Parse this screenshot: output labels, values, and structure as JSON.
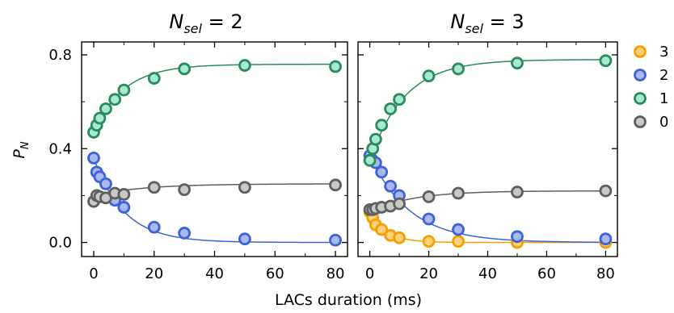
{
  "chart_data": [
    {
      "type": "scatter",
      "title": "N_sel = 2",
      "title_main": "N",
      "title_sub": "sel",
      "title_rest": " = 2",
      "xlabel": "LACs duration (ms)",
      "ylabel": "P_N",
      "ylabel_main": "P",
      "ylabel_sub": "N",
      "xlim": [
        -4,
        84
      ],
      "ylim": [
        -0.06,
        0.855
      ],
      "xticks": [
        0,
        20,
        40,
        60,
        80
      ],
      "xtick_labels": [
        "0",
        "20",
        "40",
        "60",
        "80"
      ],
      "yticks": [
        0.0,
        0.4,
        0.8
      ],
      "ytick_labels": [
        "0.0",
        "0.4",
        "0.8"
      ],
      "grid": false,
      "series": [
        {
          "name": "2",
          "fill": "#a9b9f0",
          "stroke": "#3d63d6",
          "x": [
            0,
            1,
            2,
            4,
            7,
            10,
            20,
            30,
            50,
            80
          ],
          "y": [
            0.36,
            0.3,
            0.28,
            0.25,
            0.18,
            0.15,
            0.065,
            0.04,
            0.015,
            0.01
          ],
          "fit": [
            0.36,
            0.355,
            0.0,
            0.1
          ]
        },
        {
          "name": "1",
          "fill": "#a7e9d2",
          "stroke": "#2b8b5c",
          "x": [
            0,
            1,
            2,
            4,
            7,
            10,
            20,
            30,
            50,
            80
          ],
          "y": [
            0.47,
            0.5,
            0.53,
            0.57,
            0.61,
            0.65,
            0.7,
            0.74,
            0.755,
            0.75
          ],
          "fit": [
            0.47,
            -0.29,
            0.76,
            0.1
          ]
        },
        {
          "name": "0",
          "fill": "#c9c9c9",
          "stroke": "#5f5f5f",
          "x": [
            0,
            1,
            2,
            4,
            7,
            10,
            20,
            30,
            50,
            80
          ],
          "y": [
            0.175,
            0.2,
            0.195,
            0.19,
            0.21,
            0.205,
            0.235,
            0.225,
            0.235,
            0.245
          ],
          "fit": [
            0.2,
            -0.05,
            0.25,
            0.06
          ]
        }
      ]
    },
    {
      "type": "scatter",
      "title": "N_sel = 3",
      "title_main": "N",
      "title_sub": "sel",
      "title_rest": " = 3",
      "xlabel": "LACs duration (ms)",
      "xlim": [
        -4,
        84
      ],
      "ylim": [
        -0.06,
        0.855
      ],
      "xticks": [
        0,
        20,
        40,
        60,
        80
      ],
      "xtick_labels": [
        "0",
        "20",
        "40",
        "60",
        "80"
      ],
      "yticks": [
        0.0,
        0.4,
        0.8
      ],
      "grid": false,
      "series": [
        {
          "name": "3",
          "fill": "#ffd27a",
          "stroke": "#f5a000",
          "x": [
            0,
            1,
            2,
            4,
            7,
            10,
            20,
            30,
            50,
            80
          ],
          "y": [
            0.13,
            0.105,
            0.075,
            0.055,
            0.03,
            0.02,
            0.005,
            0.005,
            0.0,
            0.0
          ],
          "fit": [
            0.13,
            0.13,
            0.0,
            0.18
          ]
        },
        {
          "name": "2",
          "fill": "#a9b9f0",
          "stroke": "#3d63d6",
          "x": [
            0,
            1,
            2,
            4,
            7,
            10,
            20,
            30,
            50,
            80
          ],
          "y": [
            0.37,
            0.35,
            0.34,
            0.3,
            0.24,
            0.2,
            0.1,
            0.055,
            0.025,
            0.015
          ],
          "fit": [
            0.375,
            0.375,
            0.0,
            0.075
          ]
        },
        {
          "name": "1",
          "fill": "#a7e9d2",
          "stroke": "#2b8b5c",
          "x": [
            0,
            1,
            2,
            4,
            7,
            10,
            20,
            30,
            50,
            80
          ],
          "y": [
            0.35,
            0.4,
            0.44,
            0.5,
            0.57,
            0.61,
            0.71,
            0.74,
            0.765,
            0.775
          ],
          "fit": [
            0.35,
            -0.43,
            0.78,
            0.085
          ]
        },
        {
          "name": "0",
          "fill": "#c9c9c9",
          "stroke": "#5f5f5f",
          "x": [
            0,
            1,
            2,
            4,
            7,
            10,
            20,
            30,
            50,
            80
          ],
          "y": [
            0.14,
            0.14,
            0.145,
            0.15,
            0.155,
            0.165,
            0.195,
            0.21,
            0.215,
            0.22
          ],
          "fit": [
            0.13,
            -0.09,
            0.22,
            0.07
          ]
        }
      ]
    }
  ],
  "legend": {
    "placement": "right",
    "entries": [
      {
        "label": "3",
        "fill": "#ffd27a",
        "stroke": "#f5a000"
      },
      {
        "label": "2",
        "fill": "#a9b9f0",
        "stroke": "#3d63d6"
      },
      {
        "label": "1",
        "fill": "#a7e9d2",
        "stroke": "#2b8b5c"
      },
      {
        "label": "0",
        "fill": "#c9c9c9",
        "stroke": "#5f5f5f"
      }
    ]
  }
}
